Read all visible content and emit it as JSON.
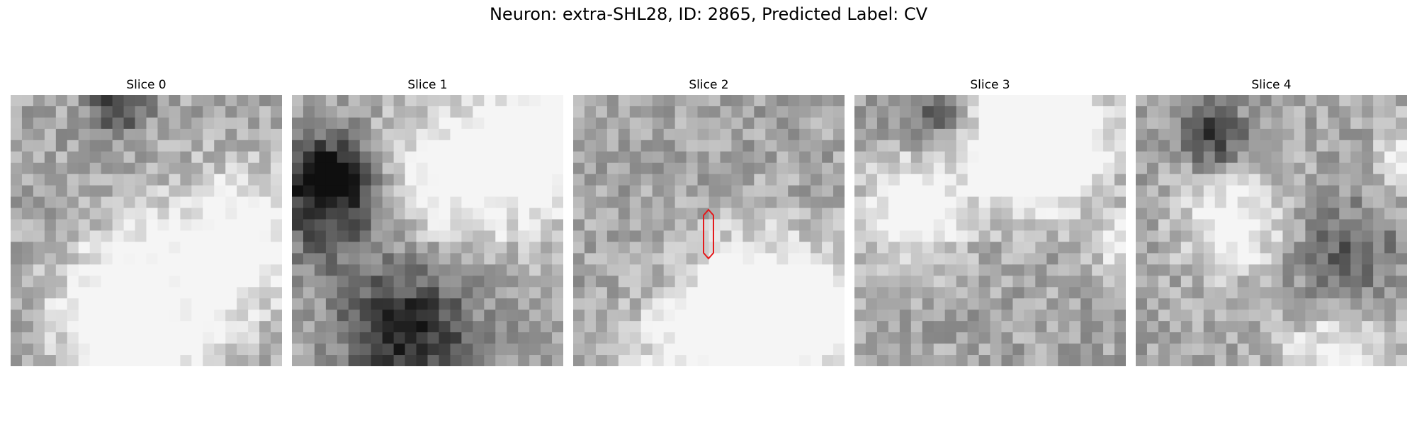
{
  "figure": {
    "title": "Neuron: extra-SHL28, ID: 2865, Predicted Label: CV"
  },
  "panels": [
    {
      "label": "Slice 0"
    },
    {
      "label": "Slice 1"
    },
    {
      "label": "Slice 2"
    },
    {
      "label": "Slice 3"
    },
    {
      "label": "Slice 4"
    }
  ],
  "colors": {
    "marker": "#e41a1c"
  }
}
